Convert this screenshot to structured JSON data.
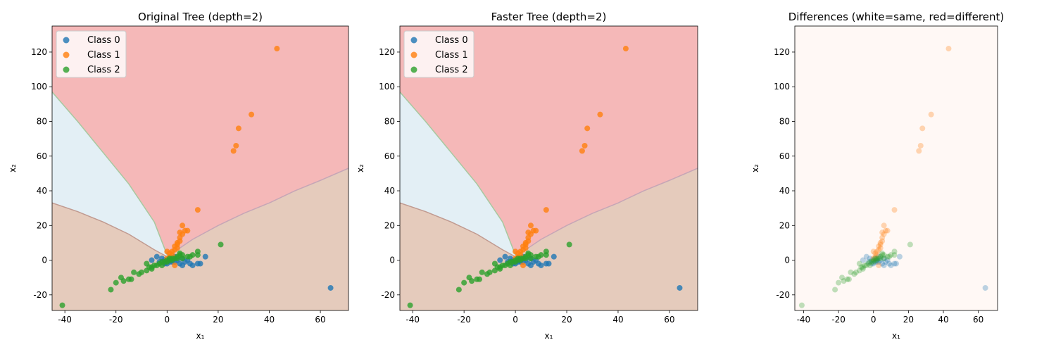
{
  "colors": {
    "class_0": "#1f77b4",
    "class_1": "#ff7f0e",
    "class_2": "#2ca02c",
    "region_class_0": "#e3eff5",
    "region_class_1": "#f5b8b8",
    "region_class_2": "#e5cbbc",
    "diff_same": "#fff8f5"
  },
  "chart_data": [
    {
      "type": "scatter",
      "title": "Original Tree (depth=2)",
      "xlabel": "x₁",
      "ylabel": "x₂",
      "xlim": [
        -45,
        71
      ],
      "ylim": [
        -29,
        135
      ],
      "xticks": [
        -40,
        -20,
        0,
        20,
        40,
        60
      ],
      "yticks": [
        -20,
        0,
        20,
        40,
        60,
        80,
        100,
        120
      ],
      "legend": {
        "location": "upper-left",
        "entries": [
          "Class 0",
          "Class 1",
          "Class 2"
        ]
      },
      "background": "decision-regions",
      "point_alpha": 0.8
    },
    {
      "type": "scatter",
      "title": "Faster Tree (depth=2)",
      "xlabel": "x₁",
      "ylabel": "x₂",
      "xlim": [
        -45,
        71
      ],
      "ylim": [
        -29,
        135
      ],
      "xticks": [
        -40,
        -20,
        0,
        20,
        40,
        60
      ],
      "yticks": [
        -20,
        0,
        20,
        40,
        60,
        80,
        100,
        120
      ],
      "legend": {
        "location": "upper-left",
        "entries": [
          "Class 0",
          "Class 1",
          "Class 2"
        ]
      },
      "background": "decision-regions",
      "point_alpha": 0.8
    },
    {
      "type": "scatter",
      "title": "Differences (white=same, red=different)",
      "xlabel": "x₁",
      "ylabel": "x₂",
      "xlim": [
        -45,
        71
      ],
      "ylim": [
        -29,
        135
      ],
      "xticks": [
        -40,
        -20,
        0,
        20,
        40,
        60
      ],
      "yticks": [
        -20,
        0,
        20,
        40,
        60,
        80,
        100,
        120
      ],
      "background": "uniform-same",
      "point_alpha": 0.3
    }
  ],
  "regions": {
    "boundary_left_upper": [
      [
        -45,
        97
      ],
      [
        -35,
        80
      ],
      [
        -25,
        62
      ],
      [
        -15,
        44
      ],
      [
        -5,
        22
      ],
      [
        0,
        3
      ]
    ],
    "boundary_left_lower": [
      [
        -45,
        33
      ],
      [
        -35,
        28
      ],
      [
        -25,
        22
      ],
      [
        -15,
        15
      ],
      [
        -5,
        6
      ],
      [
        0,
        2
      ]
    ],
    "boundary_right": [
      [
        0,
        2
      ],
      [
        10,
        12
      ],
      [
        20,
        20
      ],
      [
        30,
        27
      ],
      [
        40,
        33
      ],
      [
        50,
        40
      ],
      [
        60,
        46
      ],
      [
        71,
        53
      ]
    ]
  },
  "points": {
    "class_0": [
      [
        -6,
        0
      ],
      [
        -4,
        2
      ],
      [
        -3,
        -1
      ],
      [
        -2,
        1
      ],
      [
        -1,
        0
      ],
      [
        0,
        -2
      ],
      [
        1,
        1
      ],
      [
        2,
        -1
      ],
      [
        3,
        2
      ],
      [
        4,
        0
      ],
      [
        5,
        -2
      ],
      [
        6,
        1
      ],
      [
        6,
        -3
      ],
      [
        7,
        -1
      ],
      [
        8,
        0
      ],
      [
        9,
        -2
      ],
      [
        10,
        -3
      ],
      [
        12,
        -2
      ],
      [
        13,
        -2
      ],
      [
        15,
        2
      ],
      [
        1,
        -1
      ],
      [
        -1,
        -2
      ],
      [
        2,
        0
      ],
      [
        3,
        -1
      ],
      [
        64,
        -16
      ]
    ],
    "class_1": [
      [
        43,
        122
      ],
      [
        33,
        84
      ],
      [
        28,
        76
      ],
      [
        27,
        66
      ],
      [
        26,
        63
      ],
      [
        12,
        29
      ],
      [
        6,
        20
      ],
      [
        7,
        17
      ],
      [
        8,
        17
      ],
      [
        6,
        15
      ],
      [
        5,
        13
      ],
      [
        5,
        11
      ],
      [
        4,
        9
      ],
      [
        4,
        7
      ],
      [
        3,
        6
      ],
      [
        3,
        8
      ],
      [
        2,
        5
      ],
      [
        2,
        3
      ],
      [
        1,
        4
      ],
      [
        1,
        2
      ],
      [
        0,
        1
      ],
      [
        0,
        5
      ],
      [
        3,
        -3
      ],
      [
        4,
        10
      ],
      [
        5,
        16
      ]
    ],
    "class_2": [
      [
        -41,
        -26
      ],
      [
        -22,
        -17
      ],
      [
        -20,
        -13
      ],
      [
        -18,
        -10
      ],
      [
        -17,
        -12
      ],
      [
        -15,
        -11
      ],
      [
        -14,
        -11
      ],
      [
        -13,
        -7
      ],
      [
        -11,
        -8
      ],
      [
        -10,
        -7
      ],
      [
        -8,
        -6
      ],
      [
        -7,
        -4
      ],
      [
        -6,
        -5
      ],
      [
        -5,
        -3
      ],
      [
        -4,
        -3
      ],
      [
        -3,
        -2
      ],
      [
        -2,
        -1
      ],
      [
        -1,
        -1
      ],
      [
        0,
        0
      ],
      [
        1,
        0
      ],
      [
        2,
        1
      ],
      [
        3,
        1
      ],
      [
        4,
        2
      ],
      [
        5,
        3
      ],
      [
        5,
        4
      ],
      [
        6,
        1
      ],
      [
        8,
        2
      ],
      [
        9,
        2
      ],
      [
        10,
        3
      ],
      [
        12,
        3
      ],
      [
        12,
        5
      ],
      [
        21,
        9
      ],
      [
        -8,
        -2
      ],
      [
        -6,
        -4
      ],
      [
        -2,
        -3
      ],
      [
        0,
        -1
      ],
      [
        1,
        1
      ],
      [
        2,
        0
      ],
      [
        4,
        1
      ],
      [
        6,
        3
      ]
    ]
  }
}
